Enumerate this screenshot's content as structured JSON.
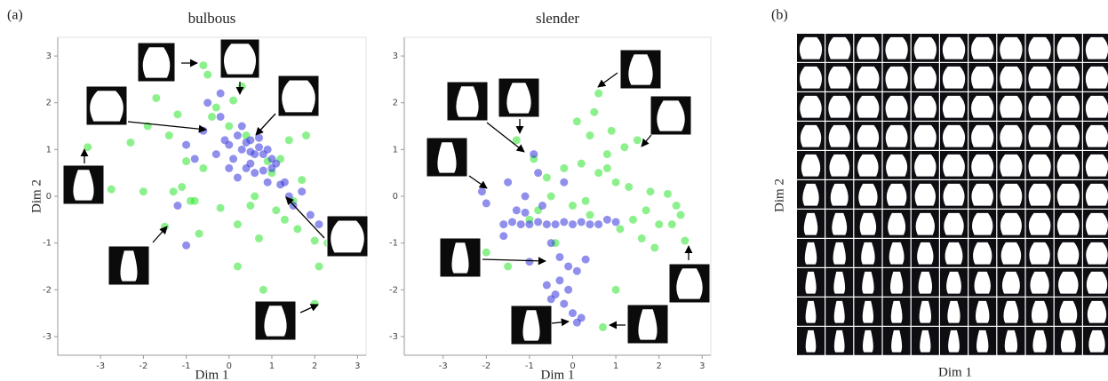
{
  "panel_labels": [
    "(a)",
    "(b)"
  ],
  "chart_data": [
    {
      "type": "scatter",
      "title": "bulbous",
      "xlabel": "Dim 1",
      "ylabel": "Dim 2",
      "xlim": [
        -4,
        3.2
      ],
      "ylim": [
        -3.4,
        3.4
      ],
      "xticks": [
        -3,
        -2,
        -1,
        0,
        1,
        2,
        3
      ],
      "yticks": [
        -3,
        -2,
        -1,
        0,
        1,
        2,
        3
      ],
      "series": [
        {
          "color": "#2ee62e",
          "x": [
            -3.3,
            -2.75,
            -2.3,
            -2.0,
            -1.9,
            -1.7,
            -1.5,
            -1.4,
            -1.2,
            -1.1,
            -1.0,
            -0.9,
            -0.7,
            -0.6,
            -0.5,
            -0.3,
            -0.2,
            0.0,
            0.1,
            0.3,
            0.4,
            0.5,
            0.7,
            0.8,
            1.0,
            1.2,
            1.3,
            1.5,
            1.7,
            1.8,
            2.0,
            2.1,
            2.3,
            -0.4,
            0.2,
            0.6,
            1.1,
            1.6,
            2.0,
            -0.6,
            0.9,
            1.4,
            0.2,
            -1.3,
            -0.8
          ],
          "values": [
            1.05,
            0.15,
            1.15,
            0.1,
            1.5,
            2.1,
            -0.65,
            1.3,
            1.75,
            0.2,
            0.75,
            -0.1,
            -0.8,
            2.8,
            2.6,
            1.9,
            -0.25,
            1.5,
            2.05,
            2.35,
            1.3,
            -0.2,
            -0.9,
            -2.0,
            0.5,
            0.8,
            -0.5,
            -0.1,
            0.35,
            1.3,
            -0.95,
            -1.5,
            -1.0,
            1.7,
            -0.6,
            0.0,
            -0.3,
            -0.7,
            -2.3,
            0.6,
            0.75,
            1.2,
            -1.5,
            0.1,
            -0.1
          ]
        },
        {
          "color": "#3535dd",
          "x": [
            -1.2,
            -1.0,
            -0.8,
            -0.6,
            -0.5,
            -0.3,
            -0.2,
            0.0,
            0.1,
            0.2,
            0.3,
            0.4,
            0.5,
            0.6,
            0.7,
            0.8,
            0.9,
            1.0,
            1.1,
            1.2,
            1.4,
            1.5,
            1.7,
            1.9,
            2.1,
            0.0,
            0.3,
            0.5,
            0.7,
            0.9,
            0.2,
            0.6,
            -0.1,
            0.4,
            0.8,
            1.3,
            -1.0,
            -0.2,
            0.5,
            1.0
          ],
          "values": [
            -0.2,
            -1.05,
            0.8,
            1.4,
            2.0,
            0.9,
            1.7,
            1.1,
            0.8,
            1.3,
            1.0,
            0.6,
            1.2,
            0.5,
            1.05,
            0.9,
            0.3,
            0.6,
            0.7,
            0.25,
            0.0,
            -0.2,
            0.1,
            -0.4,
            -0.6,
            0.6,
            1.5,
            0.7,
            1.25,
            1.0,
            0.4,
            0.9,
            1.2,
            1.15,
            0.55,
            0.3,
            1.1,
            2.2,
            0.95,
            0.8
          ]
        }
      ]
    },
    {
      "type": "scatter",
      "title": "slender",
      "xlabel": "Dim 1",
      "xlim": [
        -3.9,
        3.2
      ],
      "ylim": [
        -3.4,
        3.4
      ],
      "xticks": [
        -3,
        -2,
        -1,
        0,
        1,
        2,
        3
      ],
      "yticks": [
        -3,
        -2,
        -1,
        0,
        1,
        2,
        3
      ],
      "series": [
        {
          "color": "#2ee62e",
          "x": [
            -1.3,
            -0.8,
            -0.5,
            -0.2,
            0.0,
            0.2,
            0.4,
            0.6,
            0.8,
            1.0,
            1.2,
            1.4,
            1.6,
            1.8,
            2.0,
            2.2,
            2.5,
            2.6,
            0.5,
            0.7,
            1.1,
            1.5,
            0.9,
            0.3,
            -0.4,
            -1.0,
            -1.5,
            -2.0,
            1.7,
            2.3,
            0.6,
            1.3,
            1.9,
            0.8,
            0.4,
            -0.6,
            1.0,
            2.4,
            0.1,
            -0.9
          ],
          "values": [
            1.2,
            -0.3,
            0.0,
            0.6,
            -0.2,
            0.7,
            1.3,
            2.2,
            0.6,
            0.3,
            1.05,
            -0.5,
            -0.9,
            0.1,
            -0.6,
            0.05,
            -0.4,
            -0.95,
            1.8,
            -2.8,
            -0.7,
            1.2,
            1.4,
            -0.1,
            -1.0,
            -0.5,
            -1.5,
            -1.2,
            -0.3,
            -0.6,
            0.5,
            0.2,
            -1.1,
            0.9,
            -0.4,
            0.4,
            -2.0,
            -0.2,
            1.6,
            0.8
          ]
        },
        {
          "color": "#3535dd",
          "x": [
            -2.1,
            -2.0,
            -1.6,
            -1.4,
            -1.2,
            -1.0,
            -0.8,
            -0.6,
            -0.4,
            -0.2,
            0.0,
            0.2,
            0.4,
            0.6,
            0.8,
            1.0,
            -1.5,
            -1.3,
            -1.1,
            -0.9,
            -0.7,
            -0.5,
            -0.3,
            -0.1,
            0.1,
            0.3,
            -0.6,
            -0.4,
            -0.2,
            0.0,
            0.2,
            -0.5,
            -0.3,
            -0.1,
            0.1,
            -0.8,
            -0.2,
            -1.0,
            -1.6,
            -1.1
          ],
          "values": [
            0.1,
            -0.15,
            -0.6,
            -0.55,
            -0.6,
            -0.6,
            -0.55,
            -0.6,
            -0.6,
            -0.55,
            -0.6,
            -0.55,
            -0.6,
            -0.6,
            -0.5,
            -0.55,
            0.3,
            -0.3,
            0.0,
            0.9,
            -0.2,
            -1.0,
            -1.3,
            -1.5,
            -1.6,
            -1.35,
            -1.9,
            -2.1,
            -2.3,
            -2.5,
            -2.6,
            -2.2,
            -1.8,
            -2.0,
            -2.7,
            0.5,
            0.3,
            -1.4,
            -0.85,
            -0.35
          ]
        }
      ]
    }
  ],
  "panel_b": {
    "xlabel": "Dim 1",
    "ylabel": "Dim 2"
  }
}
